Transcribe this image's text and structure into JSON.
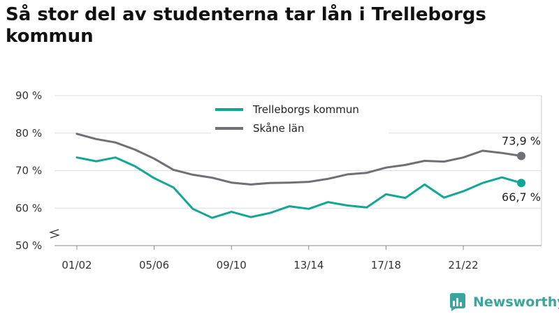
{
  "title": "Så stor del av studenterna tar lån i Trelleborgs kommun",
  "brand": {
    "name": "Newsworthy",
    "icon": "bar-chart-logo-icon"
  },
  "colors": {
    "series_primary": "#12a695",
    "series_secondary": "#6f6f76",
    "grid": "#dddddd",
    "brand": "#3aa69b"
  },
  "chart_data": {
    "type": "line",
    "y_tick_labels": [
      "50 %",
      "60 %",
      "70 %",
      "80 %",
      "90 %"
    ],
    "y_ticks": [
      50,
      60,
      70,
      80,
      90
    ],
    "ylim": [
      50,
      90
    ],
    "x_tick_labels": [
      "01/02",
      "05/06",
      "09/10",
      "13/14",
      "17/18",
      "21/22"
    ],
    "x_tick_index": [
      0,
      4,
      8,
      12,
      16,
      20
    ],
    "grid": true,
    "legend_position": "top-center",
    "y_axis_break": true,
    "series": [
      {
        "name": "Trelleborgs kommun",
        "color": "#12a695",
        "values": [
          73.5,
          72.5,
          73.5,
          71.2,
          68.0,
          65.5,
          59.8,
          57.4,
          59.0,
          57.6,
          58.7,
          60.5,
          59.8,
          61.6,
          60.7,
          60.2,
          63.7,
          62.7,
          66.3,
          62.8,
          64.5,
          66.7,
          68.2,
          66.7
        ],
        "end_label": "66,7 %"
      },
      {
        "name": "Skåne län",
        "color": "#6f6f76",
        "values": [
          79.8,
          78.4,
          77.5,
          75.6,
          73.2,
          70.2,
          68.9,
          68.1,
          66.8,
          66.3,
          66.7,
          66.8,
          67.0,
          67.8,
          69.0,
          69.4,
          70.8,
          71.5,
          72.6,
          72.4,
          73.5,
          75.3,
          74.7,
          73.9
        ],
        "end_label": "73,9 %"
      }
    ]
  }
}
